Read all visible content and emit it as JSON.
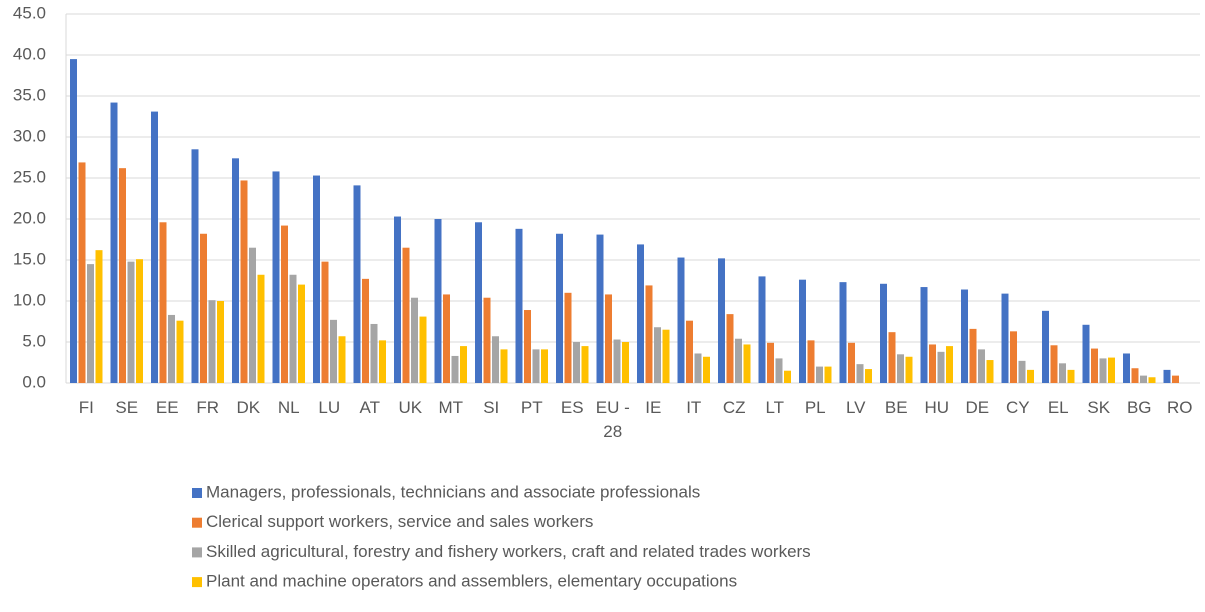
{
  "chart_data": {
    "type": "bar",
    "categories": [
      "FI",
      "SE",
      "EE",
      "FR",
      "DK",
      "NL",
      "LU",
      "AT",
      "UK",
      "MT",
      "SI",
      "PT",
      "ES",
      "EU - 28",
      "IE",
      "IT",
      "CZ",
      "LT",
      "PL",
      "LV",
      "BE",
      "HU",
      "DE",
      "CY",
      "EL",
      "SK",
      "BG",
      "RO"
    ],
    "series": [
      {
        "name": "Managers, professionals, technicians and associate professionals",
        "color": "#4472c4",
        "values": [
          39.5,
          34.2,
          33.1,
          28.5,
          27.4,
          25.8,
          25.3,
          24.1,
          20.3,
          20.0,
          19.6,
          18.8,
          18.2,
          18.1,
          16.9,
          15.3,
          15.2,
          13.0,
          12.6,
          12.3,
          12.1,
          11.7,
          11.4,
          10.9,
          8.8,
          7.1,
          3.6,
          1.6
        ]
      },
      {
        "name": "Clerical support workers, service and sales workers",
        "color": "#ed7d31",
        "values": [
          26.9,
          26.2,
          19.6,
          18.2,
          24.7,
          19.2,
          14.8,
          12.7,
          16.5,
          10.8,
          10.4,
          8.9,
          11.0,
          10.8,
          11.9,
          7.6,
          8.4,
          4.9,
          5.2,
          4.9,
          6.2,
          4.7,
          6.6,
          6.3,
          4.6,
          4.2,
          1.8,
          0.9
        ]
      },
      {
        "name": "Skilled agricultural, forestry and fishery workers, craft and related trades workers",
        "color": "#a5a5a5",
        "values": [
          14.5,
          14.8,
          8.3,
          10.1,
          16.5,
          13.2,
          7.7,
          7.2,
          10.4,
          3.3,
          5.7,
          4.1,
          5.0,
          5.3,
          6.8,
          3.6,
          5.4,
          3.0,
          2.0,
          2.3,
          3.5,
          3.8,
          4.1,
          2.7,
          2.4,
          3.0,
          0.9,
          null
        ]
      },
      {
        "name": "Plant and machine operators and assemblers, elementary occupations",
        "color": "#ffc000",
        "values": [
          16.2,
          15.1,
          7.6,
          10.0,
          13.2,
          12.0,
          5.7,
          5.2,
          8.1,
          4.5,
          4.1,
          4.1,
          4.5,
          5.0,
          6.5,
          3.2,
          4.7,
          1.5,
          2.0,
          1.7,
          3.2,
          4.5,
          2.8,
          1.6,
          1.6,
          3.1,
          0.7,
          null
        ]
      }
    ],
    "ylim": [
      0,
      45
    ],
    "yticks": [
      {
        "value": 0,
        "label": "0.0"
      },
      {
        "value": 5,
        "label": "5.0"
      },
      {
        "value": 10,
        "label": "10.0"
      },
      {
        "value": 15,
        "label": "15.0"
      },
      {
        "value": 20,
        "label": "20.0"
      },
      {
        "value": 25,
        "label": "25.0"
      },
      {
        "value": 30,
        "label": "30.0"
      },
      {
        "value": 35,
        "label": "35.0"
      },
      {
        "value": 40,
        "label": "40.0"
      },
      {
        "value": 45,
        "label": "45.0"
      }
    ],
    "grid": true
  }
}
